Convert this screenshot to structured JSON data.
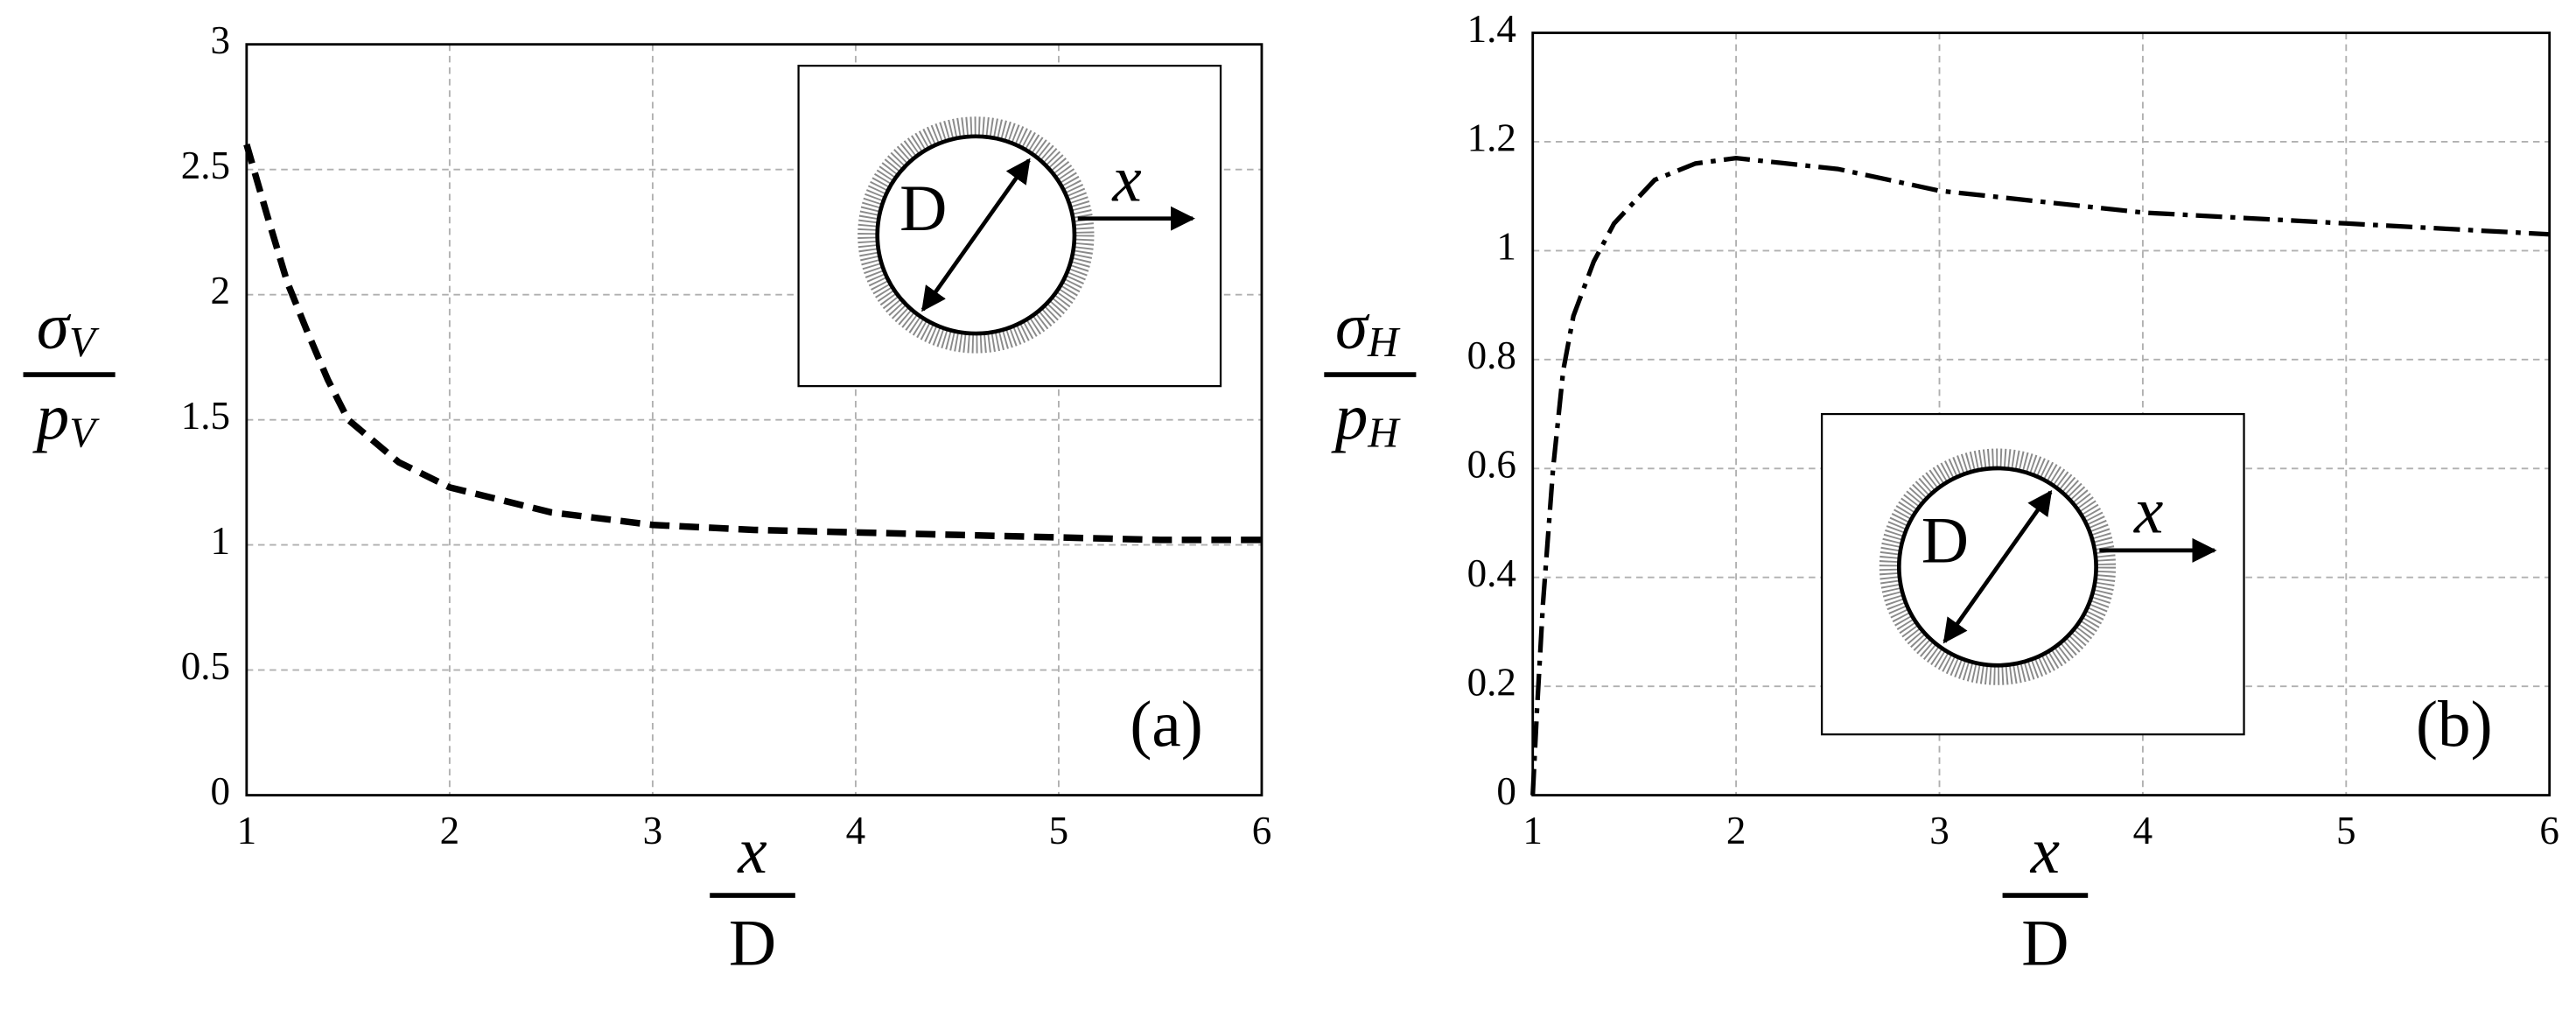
{
  "chart_data": [
    {
      "type": "line",
      "ylabel": {
        "num": [
          "σ",
          "V"
        ],
        "den": [
          "p",
          "V"
        ]
      },
      "xlabel": {
        "num": "x",
        "den": "D"
      },
      "panel_label": "(a)",
      "inset": {
        "diameter_label": "D",
        "axis_label": "x"
      },
      "xlim": [
        1,
        6
      ],
      "xticks": [
        1,
        2,
        3,
        4,
        5,
        6
      ],
      "ylim": [
        0,
        3
      ],
      "yticks": [
        0,
        0.5,
        1,
        1.5,
        2,
        2.5,
        3
      ],
      "grid": true,
      "series": [
        {
          "color": "#000000",
          "style": "dashed",
          "x": [
            1,
            1.1,
            1.2,
            1.3,
            1.4,
            1.5,
            1.75,
            2,
            2.5,
            3,
            3.5,
            4,
            4.5,
            5,
            5.5,
            6
          ],
          "values": [
            2.6,
            2.32,
            2.05,
            1.85,
            1.66,
            1.5,
            1.33,
            1.23,
            1.13,
            1.08,
            1.06,
            1.05,
            1.04,
            1.03,
            1.02,
            1.02
          ]
        }
      ]
    },
    {
      "type": "line",
      "ylabel": {
        "num": [
          "σ",
          "H"
        ],
        "den": [
          "p",
          "H"
        ]
      },
      "xlabel": {
        "num": "x",
        "den": "D"
      },
      "panel_label": "(b)",
      "inset": {
        "diameter_label": "D",
        "axis_label": "x"
      },
      "xlim": [
        1,
        6
      ],
      "xticks": [
        1,
        2,
        3,
        4,
        5,
        6
      ],
      "ylim": [
        0,
        1.4
      ],
      "yticks": [
        0,
        0.2,
        0.4,
        0.6,
        0.8,
        1,
        1.2,
        1.4
      ],
      "grid": true,
      "series": [
        {
          "color": "#000000",
          "style": "dashdot",
          "x": [
            1,
            1.02,
            1.05,
            1.1,
            1.15,
            1.2,
            1.3,
            1.4,
            1.6,
            1.8,
            2,
            2.5,
            3,
            3.5,
            4,
            4.5,
            5,
            5.5,
            6
          ],
          "values": [
            0,
            0.15,
            0.35,
            0.6,
            0.78,
            0.88,
            0.98,
            1.05,
            1.13,
            1.16,
            1.17,
            1.15,
            1.11,
            1.09,
            1.07,
            1.06,
            1.05,
            1.04,
            1.03
          ]
        }
      ]
    }
  ]
}
